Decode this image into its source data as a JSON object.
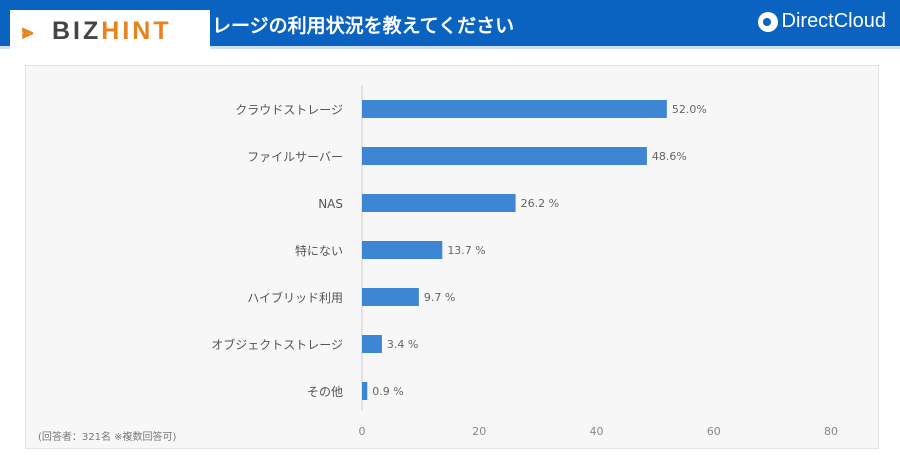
{
  "header": {
    "title": "レージの利用状況を教えてください",
    "brand": "DirectCloud",
    "watermark_text": [
      "BIZ",
      "HINT"
    ]
  },
  "footnote": "(回答者：321名 ※複数回答可)",
  "colors": {
    "bar": "#3d86d4",
    "header": "#0b63c1",
    "accent": "#e8821e"
  },
  "chart_data": {
    "type": "bar",
    "orientation": "horizontal",
    "categories": [
      "クラウドストレージ",
      "ファイルサーバー",
      "NAS",
      "特にない",
      "ハイブリッド利用",
      "オブジェクトストレージ",
      "その他"
    ],
    "values": [
      52.0,
      48.6,
      26.2,
      13.7,
      9.7,
      3.4,
      0.9
    ],
    "data_labels": [
      "52.0%",
      "48.6%",
      "26.2 %",
      "13.7 %",
      "9.7 %",
      "3.4 %",
      "0.9 %"
    ],
    "xlim": [
      0,
      80
    ],
    "xticks": [
      "0",
      "20",
      "40",
      "60",
      "80"
    ],
    "grid": false
  }
}
